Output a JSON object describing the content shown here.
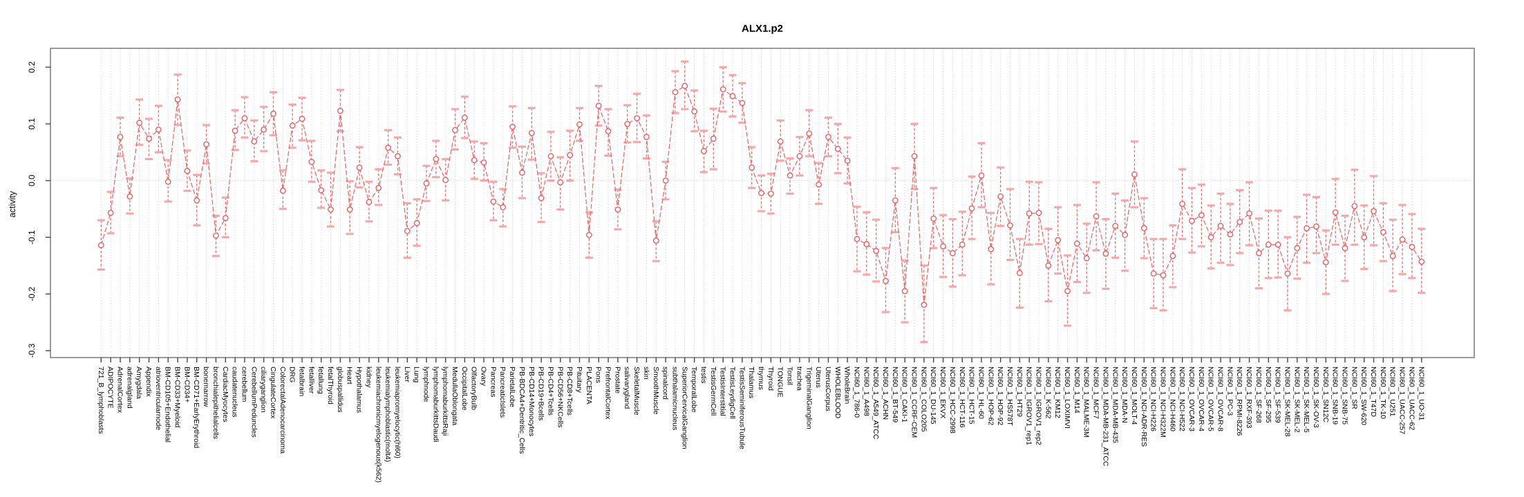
{
  "chart_data": {
    "type": "line",
    "title": "ALX1.p2",
    "ylabel": "activity",
    "xlabel": "",
    "legend": null,
    "grid": "vertical-dotted-per-category, dotted zero line",
    "series_name": "motif activity with error bars",
    "colors": {
      "line": "#ed6a6a",
      "cap": "#f6a8a8",
      "point": "#e85f5f",
      "grid": "#d9d9d9",
      "box": "#818181",
      "tick": "#454545"
    },
    "axis": {
      "ymin": -0.3122,
      "ymax": 0.2333,
      "yticks": [
        0.2,
        0.1,
        0,
        -0.1,
        -0.2,
        -0.3
      ],
      "ytick_labels": [
        "0.2",
        "0.1",
        "0.0",
        "-0.1",
        "-0.2",
        "-0.3"
      ]
    },
    "categories": [
      "721_B_lymphoblasts",
      "ADIPOCYTE",
      "AdrenalCortex",
      "adrenalgland",
      "Amygdala",
      "Appendix",
      "atrioventricularnode",
      "BM-CD105+Endothelial",
      "BM-CD33+Myeloid",
      "BM-CD34+",
      "BM-CD71+EarlyErythroid",
      "bonemarrow",
      "bronchialepithelialcells",
      "CardiacMyocytes",
      "caudatenucleus",
      "cerebellum",
      "CerebellumPeduncles",
      "ciliaryganglion",
      "CingulateCortex",
      "ColorectalAdenocarcinoma",
      "DRG",
      "fetalbrain",
      "fetalliver",
      "fetallung",
      "fetalThyroid",
      "globuspallidus",
      "Heart",
      "Hypothalamus",
      "kidney",
      "leukemiachronicmyelogenous(k562)",
      "leukemialymphoblastic(molt4)",
      "leukemiapromyelocytic(hl60)",
      "Liver",
      "Lung",
      "lymphnode",
      "lymphomaburkittsDaudi",
      "lymphomaburkittsRaji",
      "MedullaOblongata",
      "OccipitalLobe",
      "OlfactoryBulb",
      "Ovary",
      "Pancreas",
      "PancreaticIslets",
      "ParietalLobe",
      "PB-BDCA4+Dentritic_Cells",
      "PB-CD14+Monocytes",
      "PB-CD19+Bcells",
      "PB-CD4+Tcells",
      "PB-CD56+NKCells",
      "PB-CD8+Tcells",
      "Pituitary",
      "PLACENTA",
      "Pons",
      "PrefrontalCortex",
      "Prostate",
      "salivarygland",
      "SkeletalMuscle",
      "skin",
      "SmoothMuscle",
      "spinalcord",
      "subthalamicnucleus",
      "SuperiorCervicalGanglion",
      "TemporalLobe",
      "testis",
      "TestisGermCell",
      "TestisInterstitial",
      "TestisLeydigCell",
      "TestisSeminiferousTubule",
      "Thalamus",
      "thymus",
      "Thyroid",
      "TONGUE",
      "Tonsil",
      "trachea",
      "TrigeminalGanglion",
      "Uterus",
      "UterusCorpus",
      "WHOLEBLOOD",
      "WholeBrain",
      "NCI60_1_786-0",
      "NCI60_1_A498",
      "NCI60_1_A549_ATCC",
      "NCI60_1_ACHN",
      "NCI60_1_BT-549",
      "NCI60_1_CAKI-1",
      "NCI60_1_CCRF-CEM",
      "NCI60_1_COLO205",
      "NCI60_1_DU-145",
      "NCI60_1_EKVX",
      "NCI60_1_HCC-2998",
      "NCI60_1_HCT-116",
      "NCI60_1_HCT-15",
      "NCI60_1_HL-60",
      "NCI60_1_HOP-62",
      "NCI60_1_HOP-92",
      "NCI60_1_HS578T",
      "NCI60_1_HT29",
      "NCI60_1_IGROV1_rep1",
      "NCI60_1_IGROV1_rep2",
      "NCI60_1_K-562",
      "NCI60_1_KM12",
      "NCI60_1_LOXIMVI",
      "NCI60_1_M14",
      "NCI60_1_MALME-3M",
      "NCI60_1_MCF7",
      "NCI60_1_MDA-MB-231_ATCC",
      "NCI60_1_MDA-MB-435",
      "NCI60_1_MDA-N",
      "NCI60_1_MOLT-4",
      "NCI60_1_NCI-ADR-RES",
      "NCI60_1_NCI-H226",
      "NCI60_1_NCI-H322M",
      "NCI60_1_NCI-H460",
      "NCI60_1_NCI-H522",
      "NCI60_1_OVCAR-3",
      "NCI60_1_OVCAR-4",
      "NCI60_1_OVCAR-5",
      "NCI60_1_OVCAR-8",
      "NCI60_1_PC-3",
      "NCI60_1_RPMI-8226",
      "NCI60_1_RXF-393",
      "NCI60_1_SF-268",
      "NCI60_1_SF-295",
      "NCI60_1_SF-539",
      "NCI60_1_SK-MEL-28",
      "NCI60_1_SK-MEL-2",
      "NCI60_1_SK-MEL-5",
      "NCI60_1_SK-OV-3",
      "NCI60_1_SN12C",
      "NCI60_1_SNB-19",
      "NCI60_1_SNB-75",
      "NCI60_1_SR",
      "NCI60_1_SW-620",
      "NCI60_1_T47D",
      "NCI60_1_TK-10",
      "NCI60_1_U251",
      "NCI60_1_UACC-257",
      "NCI60_1_UACC-62",
      "NCI60_1_UO-31"
    ],
    "values": [
      -0.114,
      -0.057,
      0.077,
      -0.028,
      0.102,
      0.074,
      0.09,
      -0.002,
      0.143,
      0.017,
      -0.035,
      0.064,
      -0.097,
      -0.066,
      0.088,
      0.11,
      0.069,
      0.09,
      0.118,
      -0.018,
      0.097,
      0.109,
      0.033,
      -0.017,
      -0.051,
      0.123,
      -0.051,
      0.023,
      -0.038,
      -0.013,
      0.058,
      0.043,
      -0.089,
      -0.075,
      -0.005,
      0.038,
      0.001,
      0.089,
      0.111,
      0.036,
      0.032,
      -0.037,
      -0.047,
      0.095,
      0.014,
      0.084,
      -0.031,
      0.043,
      -0.003,
      0.045,
      0.099,
      -0.096,
      0.132,
      0.087,
      -0.051,
      0.1,
      0.11,
      0.077,
      -0.106,
      0.0,
      0.156,
      0.167,
      0.122,
      0.052,
      0.074,
      0.161,
      0.149,
      0.137,
      0.023,
      -0.022,
      -0.023,
      0.069,
      0.009,
      0.043,
      0.083,
      -0.007,
      0.077,
      0.056,
      0.035,
      -0.103,
      -0.112,
      -0.124,
      -0.177,
      -0.035,
      -0.195,
      0.043,
      -0.219,
      -0.067,
      -0.116,
      -0.128,
      -0.113,
      -0.049,
      0.009,
      -0.121,
      -0.028,
      -0.079,
      -0.163,
      -0.058,
      -0.057,
      -0.15,
      -0.105,
      -0.195,
      -0.111,
      -0.137,
      -0.063,
      -0.129,
      -0.08,
      -0.096,
      0.011,
      -0.084,
      -0.164,
      -0.167,
      -0.133,
      -0.041,
      -0.071,
      -0.061,
      -0.1,
      -0.08,
      -0.095,
      -0.073,
      -0.058,
      -0.128,
      -0.113,
      -0.113,
      -0.164,
      -0.119,
      -0.084,
      -0.081,
      -0.144,
      -0.056,
      -0.119,
      -0.045,
      -0.1,
      -0.054,
      -0.091,
      -0.133,
      -0.104,
      -0.117,
      -0.143
    ],
    "err_lo": [
      -0.157,
      -0.093,
      0.043,
      -0.058,
      0.063,
      0.038,
      0.05,
      -0.037,
      0.098,
      -0.018,
      -0.079,
      0.03,
      -0.133,
      -0.1,
      0.054,
      0.076,
      0.034,
      0.052,
      0.08,
      -0.05,
      0.058,
      0.071,
      -0.002,
      -0.048,
      -0.081,
      0.087,
      -0.094,
      -0.012,
      -0.072,
      -0.043,
      0.028,
      0.011,
      -0.136,
      -0.115,
      -0.036,
      0.006,
      -0.035,
      0.055,
      0.075,
      0.003,
      0.0,
      -0.07,
      -0.081,
      0.058,
      -0.031,
      0.037,
      -0.073,
      0.0,
      -0.051,
      0.0,
      0.07,
      -0.136,
      0.097,
      0.044,
      -0.086,
      0.067,
      0.068,
      0.039,
      -0.142,
      -0.033,
      0.119,
      0.126,
      0.087,
      0.015,
      0.02,
      0.122,
      0.113,
      0.102,
      -0.013,
      -0.054,
      -0.058,
      0.035,
      -0.023,
      0.009,
      0.043,
      -0.041,
      0.043,
      0.013,
      -0.005,
      -0.16,
      -0.166,
      -0.178,
      -0.232,
      -0.091,
      -0.25,
      -0.015,
      -0.285,
      -0.119,
      -0.17,
      -0.187,
      -0.167,
      -0.103,
      -0.047,
      -0.183,
      -0.08,
      -0.14,
      -0.224,
      -0.113,
      -0.112,
      -0.213,
      -0.164,
      -0.256,
      -0.179,
      -0.198,
      -0.123,
      -0.191,
      -0.136,
      -0.159,
      -0.047,
      -0.137,
      -0.225,
      -0.229,
      -0.188,
      -0.103,
      -0.127,
      -0.116,
      -0.155,
      -0.145,
      -0.149,
      -0.128,
      -0.114,
      -0.19,
      -0.172,
      -0.171,
      -0.229,
      -0.173,
      -0.145,
      -0.128,
      -0.2,
      -0.113,
      -0.177,
      -0.113,
      -0.156,
      -0.114,
      -0.142,
      -0.195,
      -0.165,
      -0.172,
      -0.198
    ],
    "err_hi": [
      -0.07,
      -0.02,
      0.111,
      0.004,
      0.143,
      0.109,
      0.132,
      0.036,
      0.187,
      0.053,
      0.01,
      0.098,
      -0.062,
      -0.03,
      0.124,
      0.147,
      0.106,
      0.13,
      0.156,
      0.018,
      0.134,
      0.146,
      0.07,
      0.018,
      0.014,
      0.16,
      -0.001,
      0.059,
      -0.002,
      0.02,
      0.089,
      0.076,
      -0.04,
      -0.033,
      0.026,
      0.07,
      0.038,
      0.126,
      0.148,
      0.069,
      0.066,
      -0.002,
      -0.015,
      0.131,
      0.06,
      0.128,
      0.013,
      0.086,
      0.041,
      0.088,
      0.128,
      -0.056,
      0.167,
      0.126,
      -0.016,
      0.133,
      0.153,
      0.115,
      -0.072,
      0.033,
      0.193,
      0.21,
      0.159,
      0.088,
      0.127,
      0.2,
      0.186,
      0.172,
      0.059,
      0.009,
      0.012,
      0.106,
      0.039,
      0.077,
      0.124,
      0.031,
      0.111,
      0.1,
      0.076,
      -0.046,
      -0.056,
      -0.069,
      -0.119,
      0.022,
      -0.141,
      0.1,
      -0.15,
      -0.013,
      -0.061,
      -0.068,
      -0.055,
      0.007,
      0.066,
      -0.057,
      0.023,
      -0.015,
      -0.103,
      -0.002,
      -0.003,
      -0.085,
      -0.047,
      -0.132,
      -0.043,
      -0.076,
      -0.003,
      -0.068,
      -0.023,
      -0.035,
      0.069,
      -0.031,
      -0.103,
      -0.103,
      -0.079,
      0.02,
      -0.013,
      -0.007,
      -0.044,
      -0.023,
      -0.041,
      -0.017,
      -0.003,
      -0.067,
      -0.053,
      -0.053,
      -0.1,
      -0.064,
      -0.025,
      -0.029,
      -0.088,
      0.003,
      -0.062,
      0.019,
      -0.044,
      0.008,
      -0.04,
      -0.069,
      -0.043,
      -0.059,
      -0.085
    ]
  }
}
